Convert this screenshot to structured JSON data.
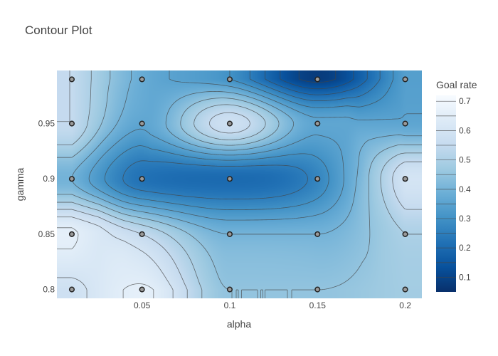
{
  "chart_data": {
    "type": "contour",
    "title": "Contour Plot",
    "xlabel": "alpha",
    "ylabel": "gamma",
    "x": [
      0.01,
      0.05,
      0.1,
      0.15,
      0.2
    ],
    "y": [
      0.8,
      0.85,
      0.9,
      0.95,
      0.99
    ],
    "z": [
      [
        0.58,
        0.66,
        0.45,
        0.45,
        0.48
      ],
      [
        0.66,
        0.55,
        0.4,
        0.4,
        0.5
      ],
      [
        0.4,
        0.22,
        0.2,
        0.27,
        0.6
      ],
      [
        0.55,
        0.36,
        0.58,
        0.36,
        0.36
      ],
      [
        0.55,
        0.38,
        0.3,
        0.08,
        0.34
      ]
    ],
    "xlim": [
      0.0015,
      0.2095
    ],
    "ylim": [
      0.792,
      0.998
    ],
    "x_ticks": [
      0.05,
      0.1,
      0.15,
      0.2
    ],
    "x_tick_labels": [
      "0.05",
      "0.1",
      "0.15",
      "0.2"
    ],
    "y_ticks": [
      0.8,
      0.85,
      0.9,
      0.95
    ],
    "y_tick_labels": [
      "0.8",
      "0.85",
      "0.9",
      "0.95"
    ],
    "colorbar": {
      "title": "Goal rate",
      "range": [
        0.05,
        0.72
      ],
      "ticks": [
        0.1,
        0.2,
        0.3,
        0.4,
        0.5,
        0.6,
        0.7
      ],
      "tick_labels": [
        "0.1",
        "0.2",
        "0.3",
        "0.4",
        "0.5",
        "0.6",
        "0.7"
      ],
      "colorscale": [
        "#08306b",
        "#08519c",
        "#2171b5",
        "#4292c6",
        "#6baed6",
        "#9ecae1",
        "#c6dbef",
        "#deebf7",
        "#f7fbff"
      ]
    },
    "contour_levels": [
      0.1,
      0.15,
      0.2,
      0.25,
      0.3,
      0.35,
      0.4,
      0.45,
      0.5,
      0.55,
      0.6,
      0.65,
      0.7
    ],
    "markers_shown": true,
    "grid": false,
    "legend": "colorbar-right"
  }
}
